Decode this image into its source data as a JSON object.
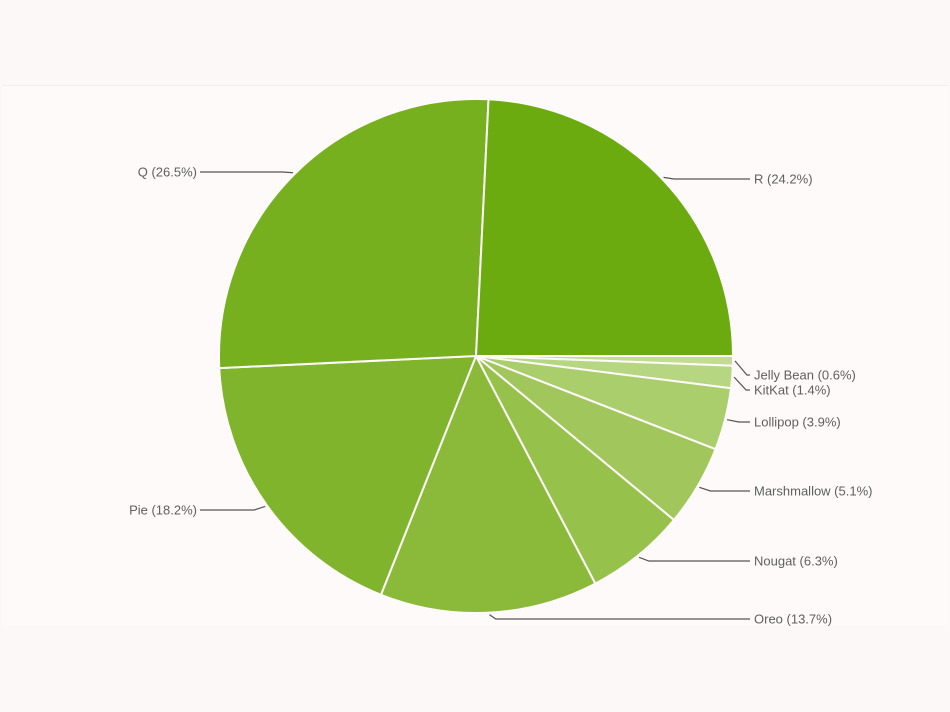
{
  "chart_data": {
    "type": "pie",
    "title": "",
    "start": "3 o'clock, clockwise",
    "legend": "none (leader-line labels)",
    "slices": [
      {
        "label": "Jelly Bean (0.6%)",
        "name": "Jelly Bean",
        "value": 0.6,
        "color": "#c2dc92"
      },
      {
        "label": "KitKat (1.4%)",
        "name": "KitKat",
        "value": 1.4,
        "color": "#b7d681"
      },
      {
        "label": "Lollipop (3.9%)",
        "name": "Lollipop",
        "value": 3.9,
        "color": "#abce6d"
      },
      {
        "label": "Marshmallow (5.1%)",
        "name": "Marshmallow",
        "value": 5.1,
        "color": "#a1c75c"
      },
      {
        "label": "Nougat (6.3%)",
        "name": "Nougat",
        "value": 6.3,
        "color": "#96c14b"
      },
      {
        "label": "Oreo (13.7%)",
        "name": "Oreo",
        "value": 13.7,
        "color": "#8bba3a"
      },
      {
        "label": "Pie (18.2%)",
        "name": "Pie",
        "value": 18.2,
        "color": "#80b42c"
      },
      {
        "label": "Q (26.5%)",
        "name": "Q",
        "value": 26.5,
        "color": "#77b01f"
      },
      {
        "label": "R (24.2%)",
        "name": "R",
        "value": 24.2,
        "color": "#6bab0f"
      }
    ]
  }
}
